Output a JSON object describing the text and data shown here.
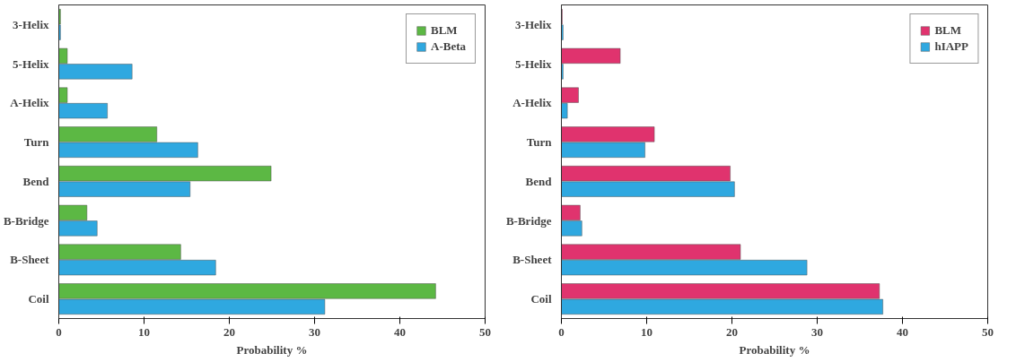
{
  "chart_data": [
    {
      "type": "bar",
      "orientation": "horizontal",
      "xlabel": "Probability %",
      "categories": [
        "3-Helix",
        "5-Helix",
        "A-Helix",
        "Turn",
        "Bend",
        "B-Bridge",
        "B-Sheet",
        "Coil"
      ],
      "xlim": [
        0,
        50
      ],
      "xticks": [
        0,
        10,
        20,
        30,
        40,
        50
      ],
      "grid": false,
      "legend": "top right",
      "series": [
        {
          "name": "BLM",
          "color": "#5cb844",
          "values": [
            0.2,
            1.0,
            1.0,
            11.5,
            24.9,
            3.3,
            14.3,
            44.2
          ]
        },
        {
          "name": "A-Beta",
          "color": "#2fa8e0",
          "values": [
            0.2,
            8.6,
            5.7,
            16.3,
            15.4,
            4.5,
            18.4,
            31.2
          ]
        }
      ]
    },
    {
      "type": "bar",
      "orientation": "horizontal",
      "xlabel": "Probability %",
      "categories": [
        "3-Helix",
        "5-Helix",
        "A-Helix",
        "Turn",
        "Bend",
        "B-Bridge",
        "B-Sheet",
        "Coil"
      ],
      "xlim": [
        0,
        50
      ],
      "xticks": [
        0,
        10,
        20,
        30,
        40,
        50
      ],
      "grid": false,
      "legend": "top right",
      "series": [
        {
          "name": "BLM",
          "color": "#e0336e",
          "values": [
            0.1,
            6.9,
            2.0,
            10.9,
            19.8,
            2.2,
            21.0,
            37.3
          ]
        },
        {
          "name": "hIAPP",
          "color": "#2fa8e0",
          "values": [
            0.2,
            0.2,
            0.7,
            9.8,
            20.3,
            2.4,
            28.8,
            37.7
          ]
        }
      ]
    }
  ]
}
